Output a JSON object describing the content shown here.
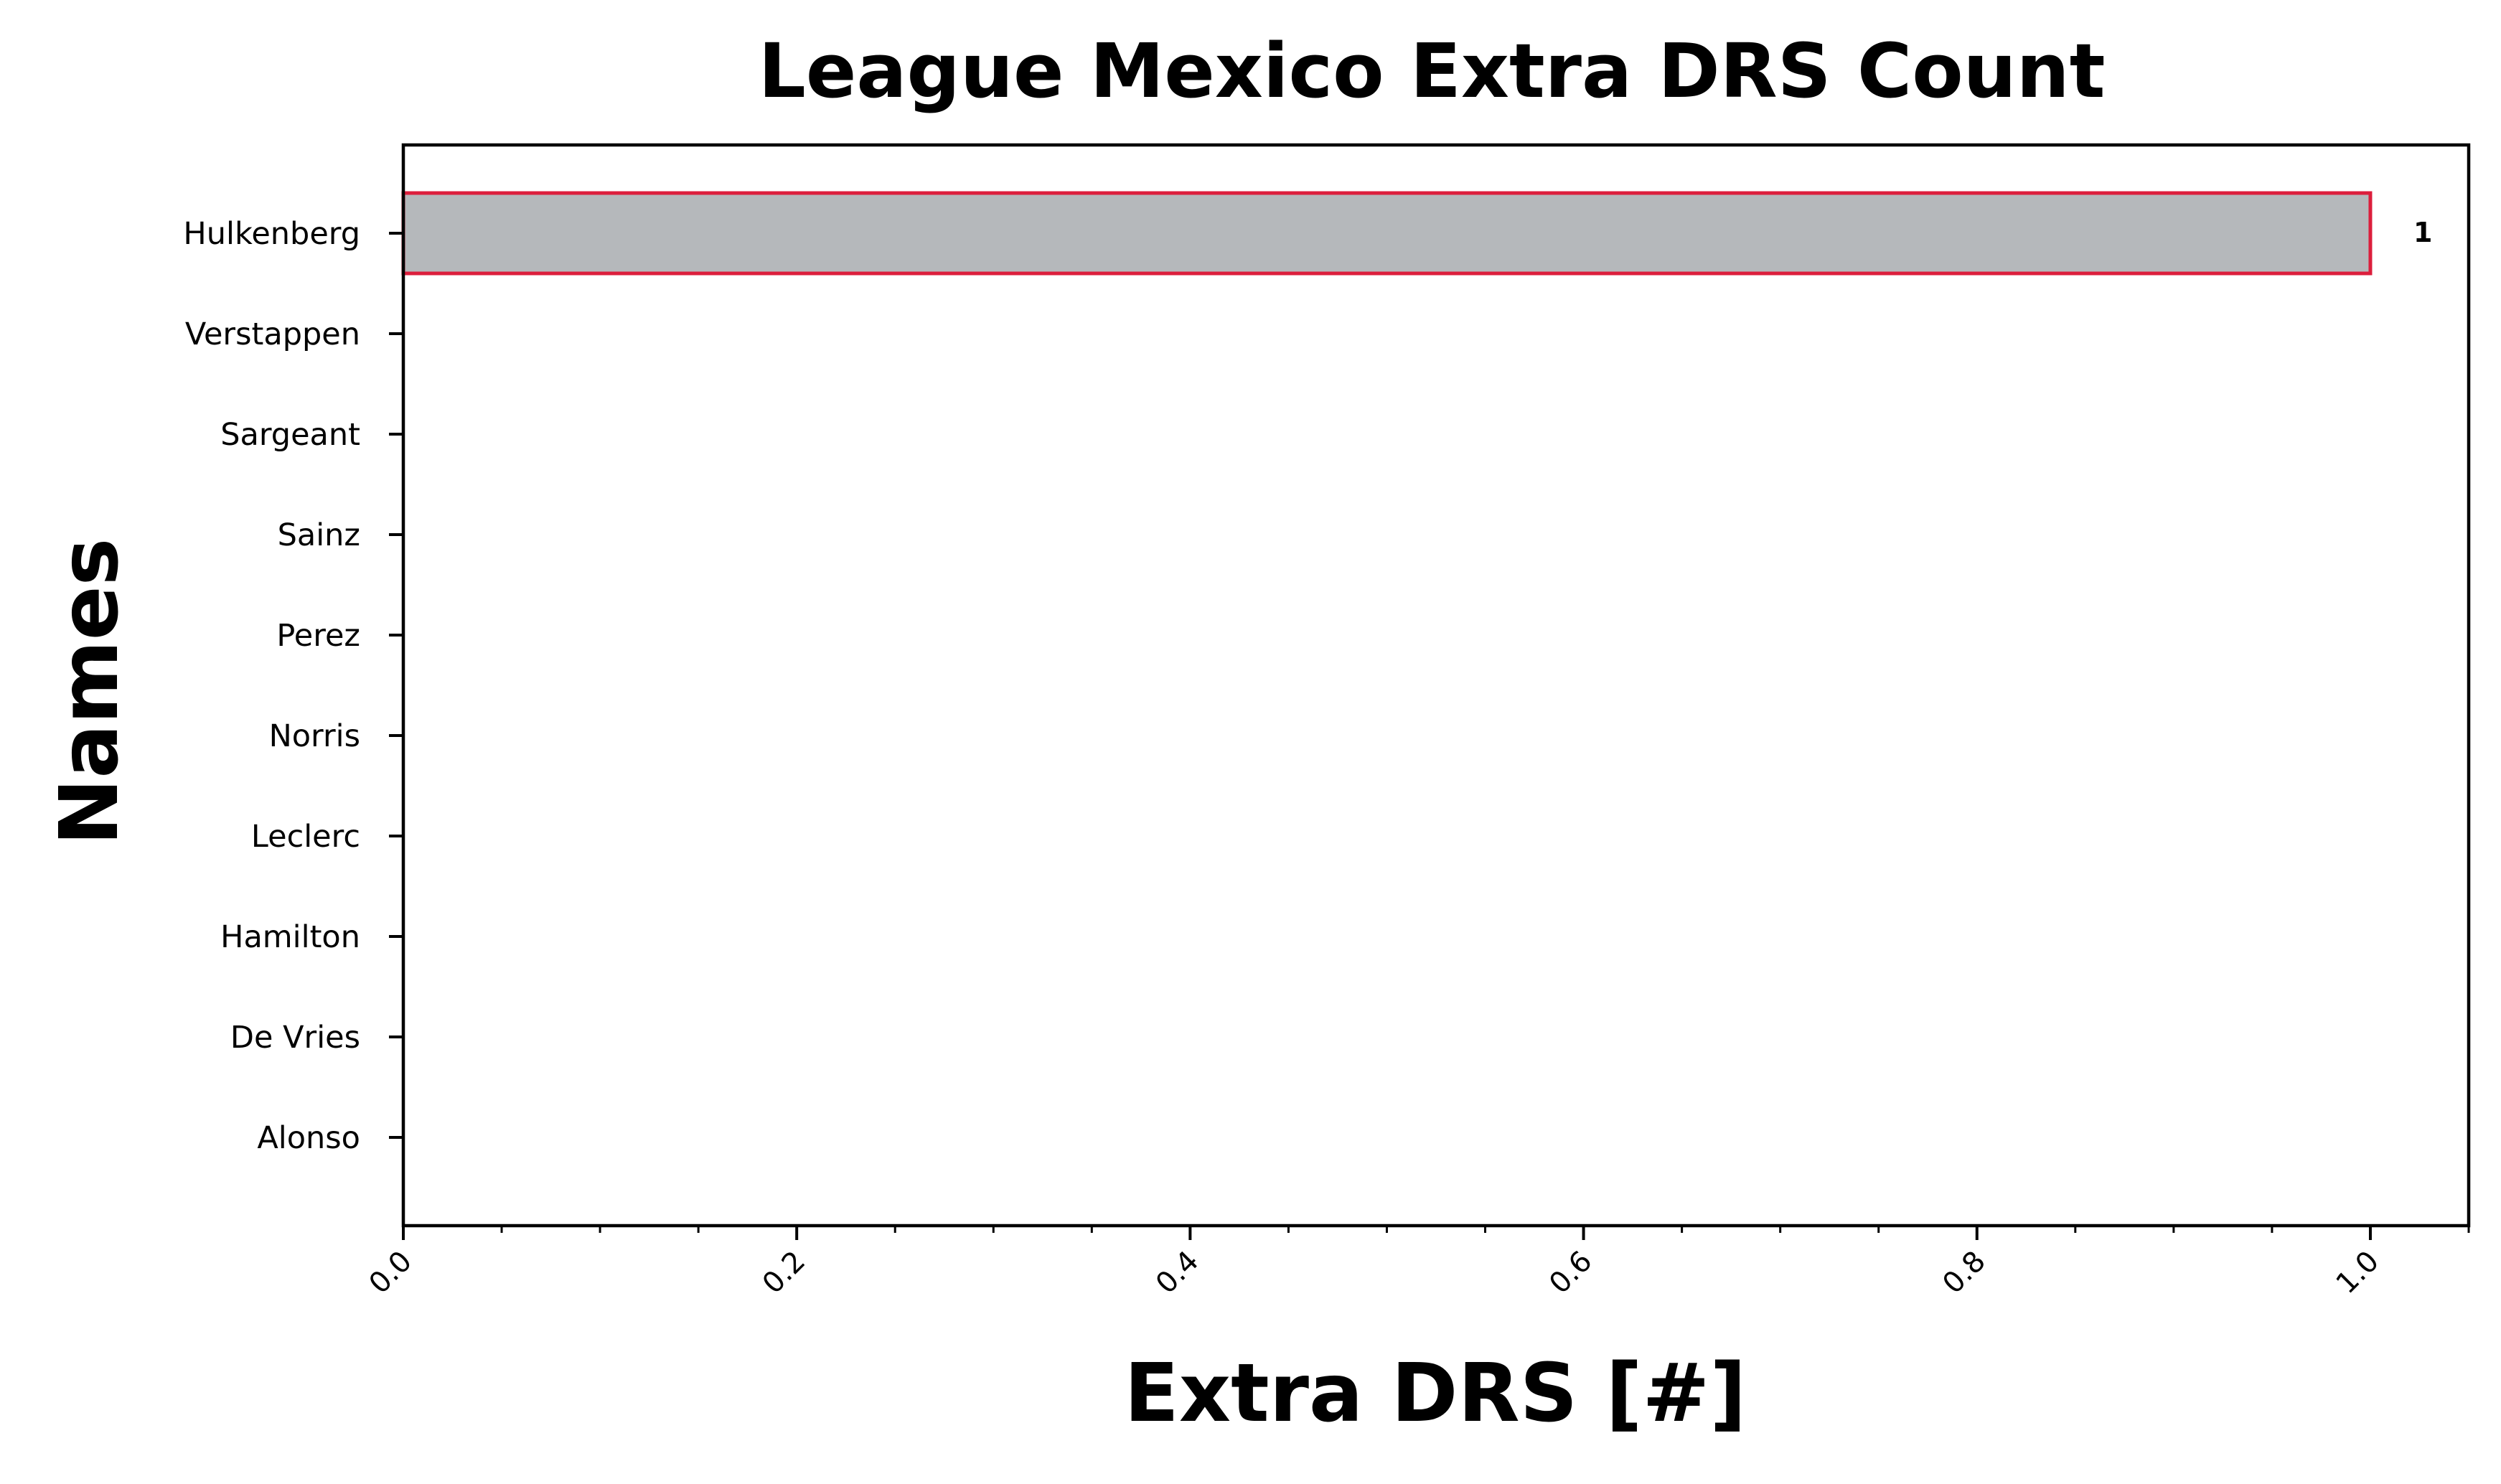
{
  "chart_data": {
    "type": "bar",
    "orientation": "horizontal",
    "title": "League Mexico Extra DRS Count",
    "xlabel": "Extra DRS [#]",
    "ylabel": "Names",
    "categories": [
      "Hulkenberg",
      "Verstappen",
      "Sargeant",
      "Sainz",
      "Perez",
      "Norris",
      "Leclerc",
      "Hamilton",
      "De Vries",
      "Alonso"
    ],
    "values": [
      1,
      0,
      0,
      0,
      0,
      0,
      0,
      0,
      0,
      0
    ],
    "value_labels": [
      "1",
      "",
      "",
      "",
      "",
      "",
      "",
      "",
      "",
      ""
    ],
    "xlim": [
      0,
      1.05
    ],
    "xticks": [
      0.0,
      0.2,
      0.4,
      0.6,
      0.8,
      1.0
    ],
    "xtick_labels": [
      "0.0",
      "0.2",
      "0.4",
      "0.6",
      "0.8",
      "1.0"
    ],
    "x_minor_tick_step": 0.05,
    "grid": false,
    "legend": "none",
    "colors": {
      "bar_fill": "#b5b8bb",
      "bar_edge": "#dc1e3c",
      "axis": "#000000",
      "text": "#000000"
    }
  }
}
